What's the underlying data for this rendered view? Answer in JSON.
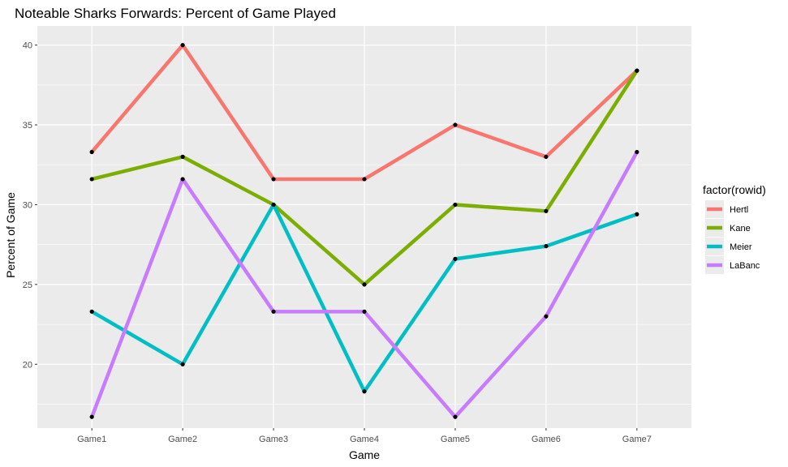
{
  "chart_data": {
    "type": "line",
    "title": "Noteable Sharks Forwards: Percent of Game Played",
    "xlabel": "Game",
    "ylabel": "Percent of Game",
    "categories": [
      "Game1",
      "Game2",
      "Game3",
      "Game4",
      "Game5",
      "Game6",
      "Game7"
    ],
    "yticks": [
      20,
      25,
      30,
      35,
      40
    ],
    "ylim": [
      16,
      41.2
    ],
    "grid": true,
    "legend": {
      "title": "factor(rowid)",
      "placement": "right"
    },
    "series": [
      {
        "name": "Hertl",
        "color": "#F8766D",
        "values": [
          33.3,
          40.0,
          31.6,
          31.6,
          35.0,
          33.0,
          38.4
        ]
      },
      {
        "name": "Kane",
        "color": "#7CAE00",
        "values": [
          31.6,
          33.0,
          30.0,
          25.0,
          30.0,
          29.6,
          38.4
        ]
      },
      {
        "name": "Meier",
        "color": "#00BFC4",
        "values": [
          23.3,
          20.0,
          30.0,
          18.3,
          26.6,
          27.4,
          29.4
        ]
      },
      {
        "name": "LaBanc",
        "color": "#C77CFF",
        "values": [
          16.7,
          31.6,
          23.3,
          23.3,
          16.7,
          23.0,
          33.3
        ]
      }
    ],
    "point_color": "#000000",
    "panel_background": "#EBEBEB",
    "grid_color": "#FFFFFF"
  }
}
